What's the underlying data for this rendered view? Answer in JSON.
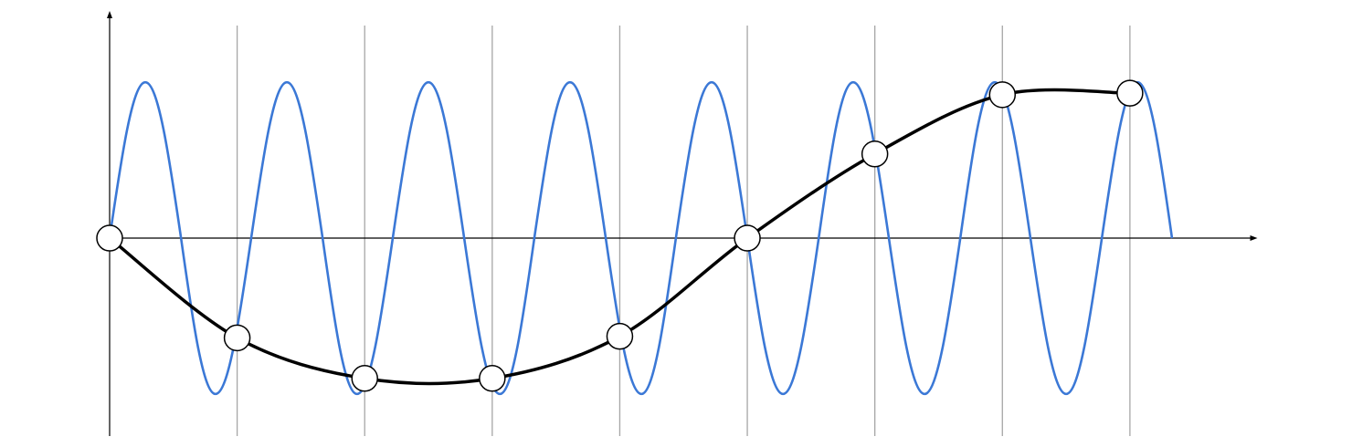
{
  "xlim": [
    0,
    9
  ],
  "ylim": [
    -1.27,
    1.44
  ],
  "signal": {
    "x": [
      0,
      0.28,
      0.56,
      0.83,
      1.11,
      1.39,
      1.67,
      1.94,
      2.22,
      2.5,
      2.78,
      3.06,
      3.33,
      3.61,
      3.89,
      4.17,
      4.44,
      4.72,
      5,
      5.28,
      5.56,
      5.83,
      6.11,
      6.39,
      6.67,
      6.94,
      7.22,
      7.5,
      7.78,
      8.06,
      8.33
    ],
    "values": [
      0,
      1,
      0,
      -1,
      0,
      1,
      0,
      -1,
      0,
      1,
      0,
      -1,
      0,
      1,
      0,
      -1,
      0,
      1,
      0,
      -1,
      0,
      1,
      0,
      -1,
      0,
      1,
      0,
      -1,
      0,
      1,
      0
    ],
    "color": "#3b78d6"
  },
  "samples": {
    "x": [
      0,
      1,
      2,
      3,
      4,
      5,
      6,
      7,
      8
    ],
    "values": [
      0,
      -0.64,
      -0.9,
      -0.9,
      -0.63,
      0,
      0.54,
      0.92,
      0.93
    ],
    "color": "#000000"
  }
}
